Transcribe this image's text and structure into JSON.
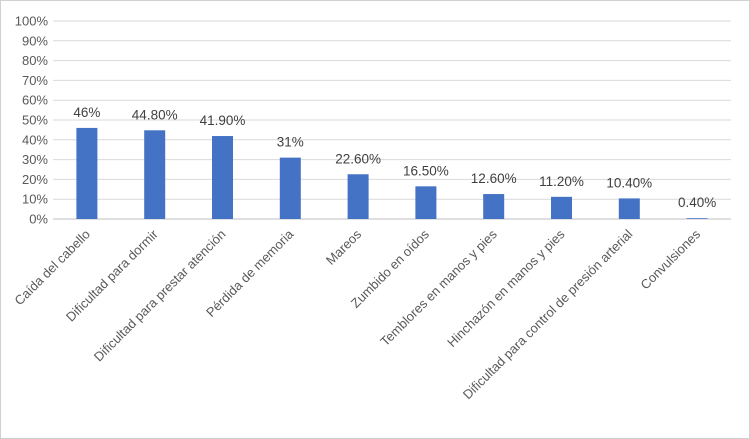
{
  "chart_data": {
    "type": "bar",
    "categories": [
      "Caída del cabello",
      "Dificultad para dormir",
      "Dificultad para prestar atención",
      "Pérdida de memoria",
      "Mareos",
      "Zumbido en oídos",
      "Temblores en manos y pies",
      "Hinchazón en manos y pies",
      "Dificultad para control de presión arterial",
      "Convulsiones"
    ],
    "values": [
      46,
      44.8,
      41.9,
      31,
      22.6,
      16.5,
      12.6,
      11.2,
      10.4,
      0.4
    ],
    "data_labels": [
      "46%",
      "44.80%",
      "41.90%",
      "31%",
      "22.60%",
      "16.50%",
      "12.60%",
      "11.20%",
      "10.40%",
      "0.40%"
    ],
    "yticks": [
      "0%",
      "10%",
      "20%",
      "30%",
      "40%",
      "50%",
      "60%",
      "70%",
      "80%",
      "90%",
      "100%"
    ],
    "ylim": [
      0,
      100
    ],
    "grid": true,
    "legend": "none",
    "bar_color": "#4472c4"
  }
}
